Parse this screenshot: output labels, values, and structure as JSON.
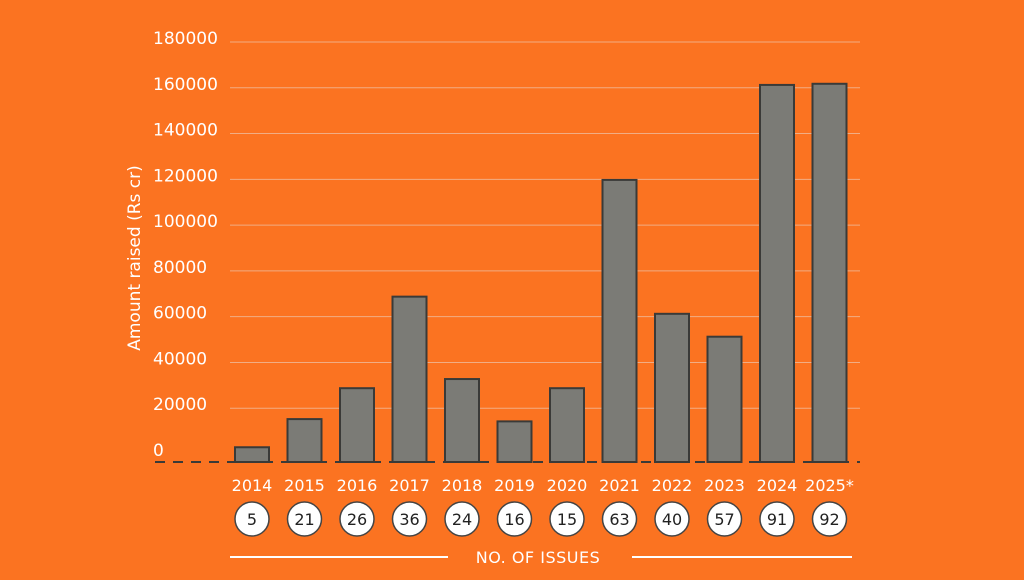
{
  "colors": {
    "background": "#FB7321",
    "bar": "#7B7B76",
    "bar_outline": "#3A3A38",
    "text": "#FFFFFF",
    "circle_fill": "#FFFFFF",
    "circle_text": "#222222"
  },
  "chart_data": {
    "type": "bar",
    "title": "",
    "xlabel": "",
    "ylabel": "Amount raised (Rs cr)",
    "ylim": [
      0,
      180000
    ],
    "yticks": [
      0,
      20000,
      40000,
      60000,
      80000,
      100000,
      120000,
      140000,
      160000,
      180000
    ],
    "grid": true,
    "categories": [
      "2014",
      "2015",
      "2016",
      "2017",
      "2018",
      "2019",
      "2020",
      "2021",
      "2022",
      "2023",
      "2024",
      "2025*"
    ],
    "values": [
      1200,
      13500,
      27000,
      67000,
      31000,
      12500,
      27000,
      118000,
      59500,
      49500,
      159500,
      160000
    ],
    "issues": [
      "5",
      "21",
      "26",
      "36",
      "24",
      "16",
      "15",
      "63",
      "40",
      "57",
      "91",
      "92"
    ],
    "footer_label": "NO. OF ISSUES"
  }
}
